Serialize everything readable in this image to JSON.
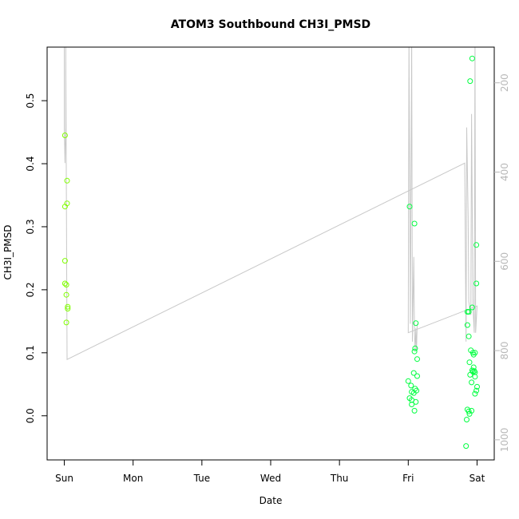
{
  "chart_data": {
    "type": "scatter",
    "title": "ATOM3 Southbound CH3I_PMSD",
    "xlabel": "Date",
    "ylabel": "CH3I_PMSD",
    "x_ticks": [
      "Sun",
      "Mon",
      "Tue",
      "Wed",
      "Thu",
      "Fri",
      "Sat"
    ],
    "xlim": [
      -0.25,
      6.25
    ],
    "ylim": [
      -0.07,
      0.585
    ],
    "y_ticks": [
      "0.0",
      "0.1",
      "0.2",
      "0.3",
      "0.4",
      "0.5"
    ],
    "y_tick_values": [
      0.0,
      0.1,
      0.2,
      0.3,
      0.4,
      0.5
    ],
    "y2_ticks": [
      "200",
      "400",
      "600",
      "800",
      "1000"
    ],
    "y2_tick_values": [
      200,
      400,
      600,
      800,
      1000
    ],
    "y2lim": [
      1045,
      120
    ],
    "grid": false,
    "colors": {
      "points_early": "#80ff00",
      "points_late": "#00ff40",
      "pressure_line": "#c8c8c8"
    },
    "series": [
      {
        "kind": "points",
        "axis": "left",
        "values": [
          {
            "x": 0.01,
            "y": 0.445
          },
          {
            "x": 0.04,
            "y": 0.373
          },
          {
            "x": 0.01,
            "y": 0.332
          },
          {
            "x": 0.04,
            "y": 0.337
          },
          {
            "x": 0.01,
            "y": 0.246
          },
          {
            "x": 0.01,
            "y": 0.21
          },
          {
            "x": 0.03,
            "y": 0.208
          },
          {
            "x": 0.03,
            "y": 0.192
          },
          {
            "x": 0.05,
            "y": 0.173
          },
          {
            "x": 0.05,
            "y": 0.17
          },
          {
            "x": 0.03,
            "y": 0.148
          },
          {
            "x": 5.02,
            "y": 0.332
          },
          {
            "x": 5.09,
            "y": 0.305
          },
          {
            "x": 5.11,
            "y": 0.147
          },
          {
            "x": 5.1,
            "y": 0.107
          },
          {
            "x": 5.09,
            "y": 0.102
          },
          {
            "x": 5.13,
            "y": 0.09
          },
          {
            "x": 5.08,
            "y": 0.068
          },
          {
            "x": 5.13,
            "y": 0.063
          },
          {
            "x": 5.0,
            "y": 0.055
          },
          {
            "x": 5.04,
            "y": 0.048
          },
          {
            "x": 5.1,
            "y": 0.043
          },
          {
            "x": 5.12,
            "y": 0.04
          },
          {
            "x": 5.05,
            "y": 0.038
          },
          {
            "x": 5.08,
            "y": 0.036
          },
          {
            "x": 5.02,
            "y": 0.028
          },
          {
            "x": 5.05,
            "y": 0.025
          },
          {
            "x": 5.11,
            "y": 0.022
          },
          {
            "x": 5.05,
            "y": 0.018
          },
          {
            "x": 5.09,
            "y": 0.008
          },
          {
            "x": 5.93,
            "y": 0.567
          },
          {
            "x": 5.9,
            "y": 0.531
          },
          {
            "x": 5.99,
            "y": 0.271
          },
          {
            "x": 5.99,
            "y": 0.21
          },
          {
            "x": 5.93,
            "y": 0.172
          },
          {
            "x": 5.86,
            "y": 0.165
          },
          {
            "x": 5.88,
            "y": 0.165
          },
          {
            "x": 5.86,
            "y": 0.144
          },
          {
            "x": 5.88,
            "y": 0.126
          },
          {
            "x": 5.91,
            "y": 0.104
          },
          {
            "x": 5.94,
            "y": 0.1
          },
          {
            "x": 5.97,
            "y": 0.1
          },
          {
            "x": 5.95,
            "y": 0.097
          },
          {
            "x": 5.89,
            "y": 0.085
          },
          {
            "x": 5.95,
            "y": 0.077
          },
          {
            "x": 5.93,
            "y": 0.072
          },
          {
            "x": 5.96,
            "y": 0.071
          },
          {
            "x": 5.94,
            "y": 0.07
          },
          {
            "x": 5.97,
            "y": 0.069
          },
          {
            "x": 5.9,
            "y": 0.065
          },
          {
            "x": 5.97,
            "y": 0.062
          },
          {
            "x": 5.92,
            "y": 0.053
          },
          {
            "x": 6.0,
            "y": 0.046
          },
          {
            "x": 5.99,
            "y": 0.04
          },
          {
            "x": 5.97,
            "y": 0.035
          },
          {
            "x": 5.86,
            "y": 0.01
          },
          {
            "x": 5.92,
            "y": 0.008
          },
          {
            "x": 5.88,
            "y": 0.007
          },
          {
            "x": 5.89,
            "y": 0.003
          },
          {
            "x": 5.85,
            "y": -0.006
          },
          {
            "x": 5.84,
            "y": -0.048
          }
        ]
      },
      {
        "kind": "line",
        "axis": "right",
        "values": [
          {
            "x": 0.0,
            "y": 95
          },
          {
            "x": 0.0,
            "y": 300
          },
          {
            "x": 0.01,
            "y": 380
          },
          {
            "x": 0.02,
            "y": 300
          },
          {
            "x": 0.02,
            "y": 95
          },
          {
            "x": 0.04,
            "y": 820
          },
          {
            "x": 5.82,
            "y": 380
          },
          {
            "x": 5.84,
            "y": 780
          },
          {
            "x": 5.85,
            "y": 300
          },
          {
            "x": 5.87,
            "y": 500
          },
          {
            "x": 5.88,
            "y": 690
          },
          {
            "x": 5.91,
            "y": 720
          },
          {
            "x": 5.92,
            "y": 270
          },
          {
            "x": 5.94,
            "y": 700
          },
          {
            "x": 5.96,
            "y": 760
          },
          {
            "x": 5.97,
            "y": 95
          },
          {
            "x": 5.98,
            "y": 760
          },
          {
            "x": 6.0,
            "y": 700
          },
          {
            "x": 5.0,
            "y": 760
          },
          {
            "x": 5.01,
            "y": 95
          },
          {
            "x": 5.03,
            "y": 740
          },
          {
            "x": 5.05,
            "y": 95
          },
          {
            "x": 5.06,
            "y": 780
          },
          {
            "x": 5.08,
            "y": 590
          },
          {
            "x": 5.09,
            "y": 760
          },
          {
            "x": 5.1,
            "y": 800
          },
          {
            "x": 5.11,
            "y": 750
          },
          {
            "x": 5.12,
            "y": 800
          },
          {
            "x": 5.13,
            "y": 740
          }
        ]
      }
    ]
  }
}
